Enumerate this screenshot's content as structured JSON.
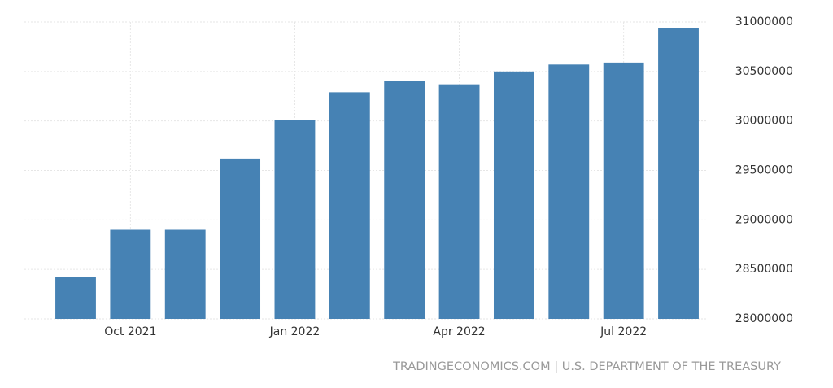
{
  "chart_data": {
    "type": "bar",
    "categories": [
      null,
      "Oct 2021",
      null,
      null,
      "Jan 2022",
      null,
      null,
      "Apr 2022",
      null,
      null,
      "Jul 2022",
      null
    ],
    "values": [
      28420000,
      28900000,
      28900000,
      29620000,
      30010000,
      30290000,
      30400000,
      30370000,
      30500000,
      30570000,
      30590000,
      30940000
    ],
    "color": "#4682b4",
    "ylim": [
      28000000,
      31000000
    ],
    "yticks": [
      28000000,
      28500000,
      29000000,
      29500000,
      30000000,
      30500000,
      31000000
    ],
    "grid": true,
    "source": "TRADINGECONOMICS.COM | U.S. DEPARTMENT OF THE TREASURY"
  }
}
